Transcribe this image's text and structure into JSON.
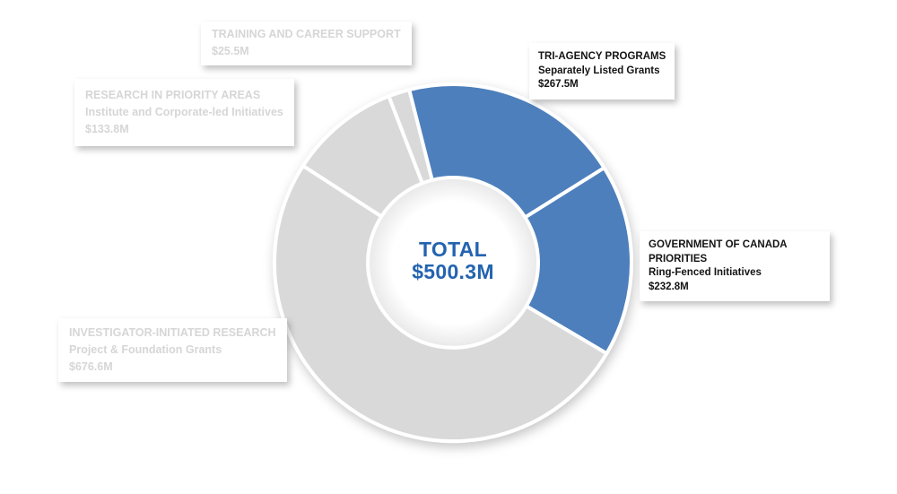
{
  "colors": {
    "highlight": "#4d7fbc",
    "muted": "#d9d9d9",
    "separator": "#ffffff",
    "muted_label_text": "#d6d6d6",
    "dark_label_text": "#141414",
    "center_text": "#2363af"
  },
  "center": {
    "label": "TOTAL",
    "value": "$500.3M"
  },
  "chart_data": {
    "type": "pie",
    "subtype": "donut",
    "title": "",
    "center_label": "TOTAL",
    "center_value_display": "$500.3M",
    "values_unit": "$M",
    "start_angle_deg": -14.2,
    "legend_position": "callout-cards",
    "segments": [
      {
        "label": "TRI-AGENCY PROGRAMS",
        "sublabel": "Separately Listed Grants",
        "value": 267.5,
        "display": "$267.5M",
        "highlighted": true
      },
      {
        "label": "GOVERNMENT OF CANADA PRIORITIES",
        "sublabel": "Ring-Fenced Initiatives",
        "value": 232.8,
        "display": "$232.8M",
        "highlighted": true
      },
      {
        "label": "INVESTIGATOR-INITIATED RESEARCH",
        "sublabel": "Project & Foundation Grants",
        "value": 676.6,
        "display": "$676.6M",
        "highlighted": false
      },
      {
        "label": "RESEARCH IN PRIORITY AREAS",
        "sublabel": "Institute and Corporate-led Initiatives",
        "value": 133.8,
        "display": "$133.8M",
        "highlighted": false
      },
      {
        "label": "TRAINING AND CAREER SUPPORT",
        "sublabel": "",
        "value": 25.5,
        "display": "$25.5M",
        "highlighted": false
      }
    ]
  }
}
